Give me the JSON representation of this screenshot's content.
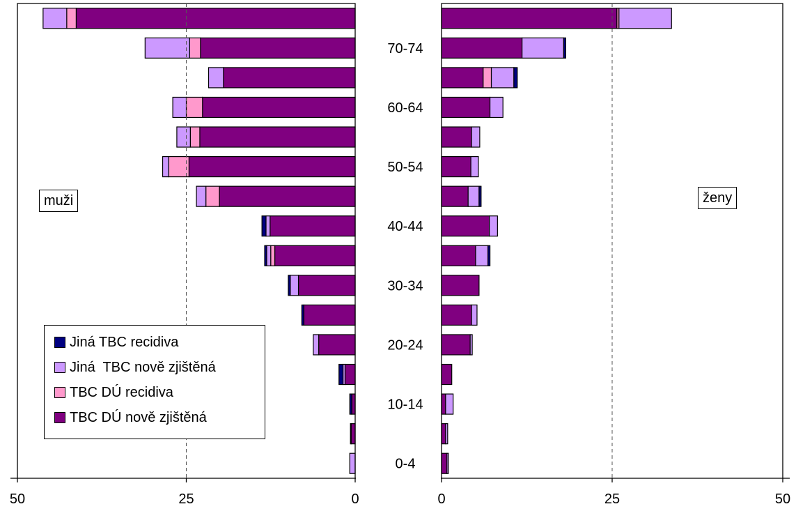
{
  "chart_data": {
    "type": "bar",
    "orientation": "horizontal-population-pyramid",
    "categories": [
      "0-4",
      "5-9",
      "10-14",
      "15-19",
      "20-24",
      "25-29",
      "30-34",
      "35-39",
      "40-44",
      "45-49",
      "50-54",
      "55-59",
      "60-64",
      "65-69",
      "70-74",
      "75+"
    ],
    "category_tick_labels": [
      "0-4",
      "10-14",
      "20-24",
      "30-34",
      "40-44",
      "50-54",
      "60-64",
      "70-74"
    ],
    "x_ticks_left": [
      "50",
      "25",
      "0"
    ],
    "x_ticks_right": [
      "0",
      "25",
      "50"
    ],
    "xlim": [
      0,
      50
    ],
    "panels": [
      {
        "label": "muži",
        "side": "left",
        "series": [
          {
            "name": "TBC DÚ nově zjištěná",
            "values": [
              0.0,
              0.6,
              0.5,
              1.5,
              5.4,
              7.6,
              8.4,
              11.9,
              12.6,
              20.1,
              24.6,
              23.0,
              22.6,
              19.5,
              22.9,
              41.3
            ]
          },
          {
            "name": "TBC DÚ recidiva",
            "values": [
              0.0,
              0.0,
              0.0,
              0.0,
              0.0,
              0.0,
              0.0,
              0.6,
              0.0,
              2.0,
              3.0,
              1.4,
              2.4,
              0.0,
              1.6,
              1.4
            ]
          },
          {
            "name": "Jiná TBC nově zjištěná",
            "values": [
              0.8,
              0.0,
              0.0,
              0.3,
              0.8,
              0.0,
              1.2,
              0.6,
              0.6,
              1.4,
              0.9,
              2.0,
              2.0,
              2.2,
              6.6,
              3.5
            ]
          },
          {
            "name": "Jiná TBC recidiva",
            "values": [
              0.0,
              0.1,
              0.3,
              0.6,
              0.0,
              0.3,
              0.3,
              0.3,
              0.6,
              0.0,
              0.0,
              0.0,
              0.0,
              0.0,
              0.0,
              0.0
            ]
          }
        ]
      },
      {
        "label": "ženy",
        "side": "right",
        "series": [
          {
            "name": "TBC DÚ nově zjištěná",
            "values": [
              0.8,
              0.6,
              0.6,
              1.5,
              4.2,
              4.4,
              5.5,
              5.0,
              7.0,
              3.9,
              4.3,
              4.4,
              7.1,
              6.1,
              11.8,
              25.7
            ]
          },
          {
            "name": "TBC DÚ recidiva",
            "values": [
              0.0,
              0.0,
              0.0,
              0.0,
              0.0,
              0.0,
              0.0,
              0.0,
              0.0,
              0.0,
              0.0,
              0.0,
              0.0,
              1.2,
              0.0,
              0.3
            ]
          },
          {
            "name": "Jiná TBC nově zjištěná",
            "values": [
              0.2,
              0.3,
              1.1,
              0.0,
              0.3,
              0.8,
              0.0,
              1.8,
              1.2,
              1.6,
              1.1,
              1.2,
              1.9,
              3.3,
              6.1,
              7.7
            ]
          },
          {
            "name": "Jiná TBC recidiva",
            "values": [
              0.0,
              0.0,
              0.0,
              0.0,
              0.0,
              0.0,
              0.0,
              0.3,
              0.0,
              0.3,
              0.0,
              0.0,
              0.0,
              0.5,
              0.3,
              0.0
            ]
          }
        ]
      }
    ],
    "reference_lines": [
      25
    ],
    "legend": {
      "placement": "lower-left",
      "entries": [
        {
          "label": "Jiná TBC recidiva",
          "color": "#000080"
        },
        {
          "label": "Jiná  TBC nově zjištěná",
          "color": "#cc99ff"
        },
        {
          "label": "TBC DÚ recidiva",
          "color": "#ff99cc"
        },
        {
          "label": "TBC DÚ nově zjištěná",
          "color": "#800080"
        }
      ]
    },
    "colors": {
      "TBC DÚ nově zjištěná": "#800080",
      "TBC DÚ recidiva": "#ff99cc",
      "Jiná TBC nově zjištěná": "#cc99ff",
      "Jiná TBC recidiva": "#000080"
    },
    "grid": false
  },
  "labels": {
    "left_panel": "muži",
    "right_panel": "ženy"
  }
}
